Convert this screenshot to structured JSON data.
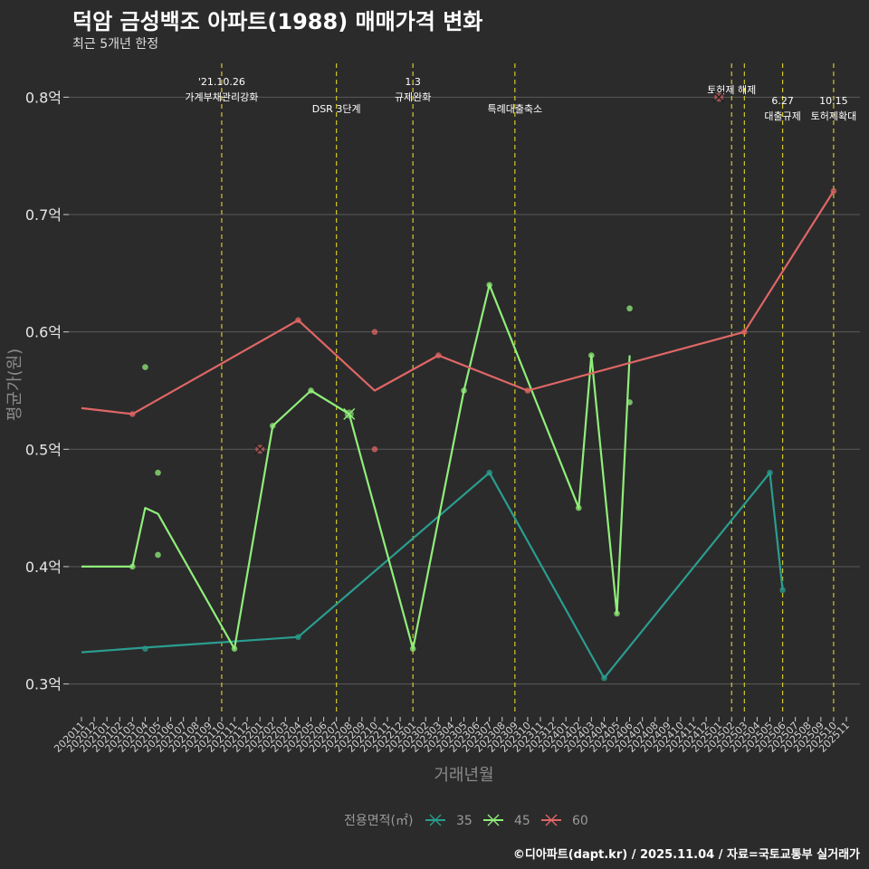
{
  "title": "덕암 금성백조 아파트(1988) 매매가격 변화",
  "subtitle": "최근 5개년 한정",
  "caption": "©디아파트(dapt.kr) / 2025.11.04 / 자료=국토교통부 실거래가",
  "chart_data": {
    "type": "line",
    "xlabel": "거래년월",
    "ylabel": "평균가(원)",
    "ylim": [
      0.275,
      0.835
    ],
    "y_ticks": [
      {
        "value": 0.3,
        "label": "0.3억"
      },
      {
        "value": 0.4,
        "label": "0.4억"
      },
      {
        "value": 0.5,
        "label": "0.5억"
      },
      {
        "value": 0.6,
        "label": "0.6억"
      },
      {
        "value": 0.7,
        "label": "0.7억"
      },
      {
        "value": 0.8,
        "label": "0.8억"
      }
    ],
    "categories": [
      "202011",
      "202012",
      "202101",
      "202102",
      "202103",
      "202104",
      "202105",
      "202106",
      "202107",
      "202108",
      "202109",
      "202110",
      "202111",
      "202112",
      "202201",
      "202202",
      "202203",
      "202204",
      "202205",
      "202206",
      "202207",
      "202208",
      "202209",
      "202210",
      "202211",
      "202212",
      "202301",
      "202302",
      "202303",
      "202304",
      "202305",
      "202306",
      "202307",
      "202308",
      "202309",
      "202310",
      "202311",
      "202312",
      "202401",
      "202402",
      "202403",
      "202404",
      "202405",
      "202406",
      "202407",
      "202408",
      "202409",
      "202410",
      "202411",
      "202412",
      "202501",
      "202502",
      "202503",
      "202504",
      "202505",
      "202506",
      "202507",
      "202508",
      "202509",
      "202510",
      "202511"
    ],
    "legend": {
      "title": "전용면적(㎡)",
      "position": "bottom"
    },
    "series": [
      {
        "name": "35",
        "color": "#2a9d8f",
        "line": [
          [
            0,
            0.327
          ],
          [
            5,
            0.331
          ],
          [
            17,
            0.34
          ],
          [
            32,
            0.48
          ],
          [
            41,
            0.305
          ],
          [
            54,
            0.48
          ],
          [
            55,
            0.38
          ]
        ],
        "points": [
          [
            5,
            0.33
          ],
          [
            17,
            0.34
          ],
          [
            32,
            0.48
          ],
          [
            41,
            0.305
          ],
          [
            54,
            0.48
          ],
          [
            55,
            0.38
          ]
        ],
        "crosses": []
      },
      {
        "name": "45",
        "color": "#90ee7a",
        "line": [
          [
            0,
            0.4
          ],
          [
            4,
            0.4
          ],
          [
            5,
            0.45
          ],
          [
            6,
            0.445
          ],
          [
            12,
            0.33
          ],
          [
            15,
            0.52
          ],
          [
            18,
            0.55
          ],
          [
            21,
            0.53
          ],
          [
            26,
            0.33
          ],
          [
            30,
            0.55
          ],
          [
            32,
            0.64
          ],
          [
            39,
            0.45
          ],
          [
            40,
            0.58
          ],
          [
            42,
            0.36
          ],
          [
            43,
            0.58
          ]
        ],
        "points": [
          [
            4,
            0.4
          ],
          [
            5,
            0.57
          ],
          [
            6,
            0.48
          ],
          [
            6,
            0.41
          ],
          [
            12,
            0.33
          ],
          [
            15,
            0.52
          ],
          [
            18,
            0.55
          ],
          [
            26,
            0.33
          ],
          [
            30,
            0.55
          ],
          [
            32,
            0.64
          ],
          [
            39,
            0.45
          ],
          [
            40,
            0.58
          ],
          [
            42,
            0.36
          ],
          [
            43,
            0.62
          ],
          [
            43,
            0.54
          ]
        ],
        "crosses": [
          [
            21,
            0.53
          ]
        ]
      },
      {
        "name": "60",
        "color": "#e06666",
        "line": [
          [
            0,
            0.535
          ],
          [
            4,
            0.53
          ],
          [
            17,
            0.61
          ],
          [
            23,
            0.55
          ],
          [
            28,
            0.58
          ],
          [
            35,
            0.55
          ],
          [
            52,
            0.6
          ],
          [
            59,
            0.72
          ]
        ],
        "points": [
          [
            4,
            0.53
          ],
          [
            17,
            0.61
          ],
          [
            23,
            0.6
          ],
          [
            23,
            0.5
          ],
          [
            28,
            0.58
          ],
          [
            35,
            0.55
          ],
          [
            52,
            0.6
          ],
          [
            59,
            0.72
          ]
        ],
        "crosses": [
          [
            14,
            0.5
          ],
          [
            50,
            0.8
          ]
        ]
      }
    ],
    "events": [
      {
        "x": 11,
        "lines": [
          "'21.10.26",
          "가계부채관리강화"
        ]
      },
      {
        "x": 20,
        "lines": [
          "DSR 3단계"
        ]
      },
      {
        "x": 26,
        "lines": [
          "1.3",
          "규제완화"
        ]
      },
      {
        "x": 34,
        "lines": [
          "특례대출축소"
        ]
      },
      {
        "x": 51,
        "lines": [
          "토허제 해제"
        ]
      },
      {
        "x": 52,
        "lines": []
      },
      {
        "x": 55,
        "lines": [
          "6.27",
          "대출규제"
        ]
      },
      {
        "x": 59,
        "lines": [
          "10.15",
          "토허제확대"
        ]
      }
    ]
  }
}
